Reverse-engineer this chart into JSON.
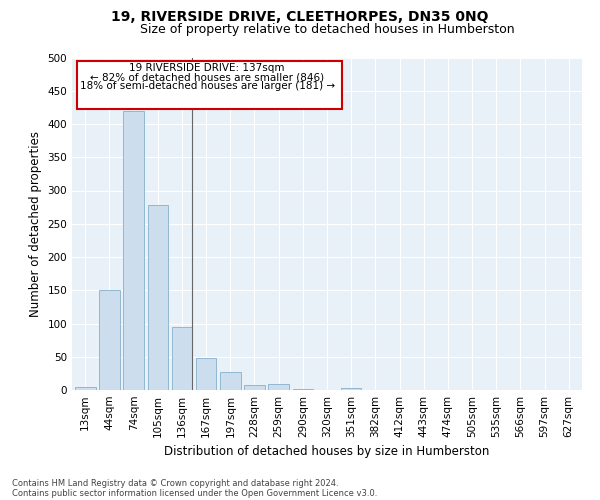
{
  "title": "19, RIVERSIDE DRIVE, CLEETHORPES, DN35 0NQ",
  "subtitle": "Size of property relative to detached houses in Humberston",
  "xlabel": "Distribution of detached houses by size in Humberston",
  "ylabel": "Number of detached properties",
  "footnote1": "Contains HM Land Registry data © Crown copyright and database right 2024.",
  "footnote2": "Contains public sector information licensed under the Open Government Licence v3.0.",
  "categories": [
    "13sqm",
    "44sqm",
    "74sqm",
    "105sqm",
    "136sqm",
    "167sqm",
    "197sqm",
    "228sqm",
    "259sqm",
    "290sqm",
    "320sqm",
    "351sqm",
    "382sqm",
    "412sqm",
    "443sqm",
    "474sqm",
    "505sqm",
    "535sqm",
    "566sqm",
    "597sqm",
    "627sqm"
  ],
  "values": [
    5,
    150,
    420,
    278,
    95,
    48,
    27,
    8,
    9,
    2,
    0,
    3,
    0,
    0,
    0,
    0,
    0,
    0,
    0,
    0,
    0
  ],
  "bar_color": "#ccdded",
  "bar_edge_color": "#90b8d0",
  "annotation_text_line1": "19 RIVERSIDE DRIVE: 137sqm",
  "annotation_text_line2": "← 82% of detached houses are smaller (846)",
  "annotation_text_line3": "18% of semi-detached houses are larger (181) →",
  "annotation_box_color": "#ffffff",
  "annotation_border_color": "#cc0000",
  "ylim": [
    0,
    500
  ],
  "yticks": [
    0,
    50,
    100,
    150,
    200,
    250,
    300,
    350,
    400,
    450,
    500
  ],
  "plot_bg_color": "#e8f0f8",
  "title_fontsize": 10,
  "subtitle_fontsize": 9,
  "tick_fontsize": 7.5,
  "label_fontsize": 8.5,
  "footnote_fontsize": 6
}
